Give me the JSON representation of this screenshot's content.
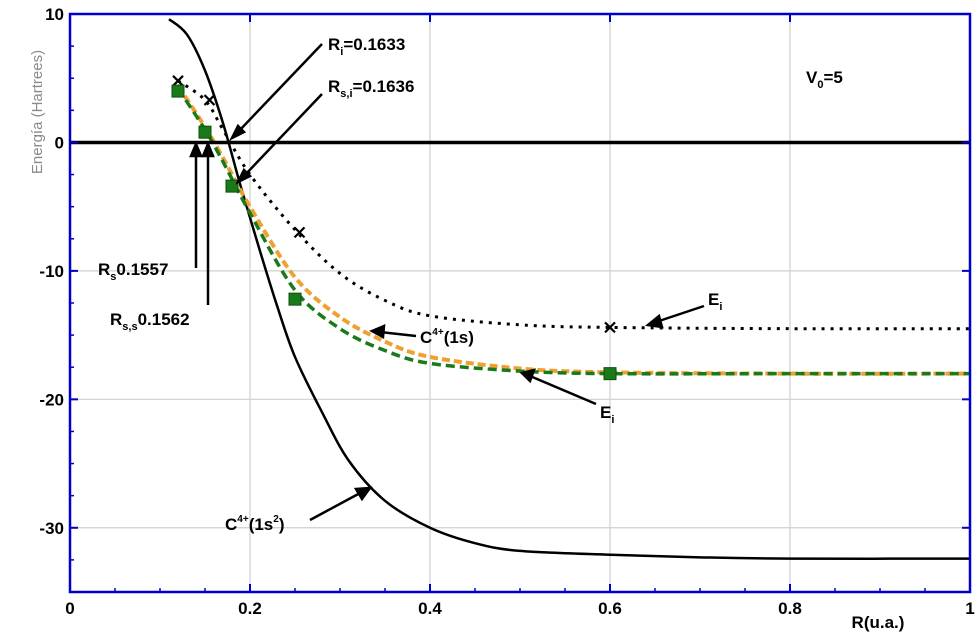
{
  "chart_data": {
    "type": "line",
    "title": "",
    "xlabel": "R(u.a.)",
    "ylabel": "Energía (Hartrees)",
    "xlim": [
      0,
      1
    ],
    "ylim": [
      -35,
      10
    ],
    "x_ticks": [
      "0",
      "0.2",
      "0.4",
      "0.6",
      "0.8",
      "1"
    ],
    "y_ticks": [
      "10",
      "0",
      "-10",
      "-20",
      "-30"
    ],
    "grid": true,
    "colors": {
      "axes": "#0000cc",
      "grid": "#cfcfcf",
      "orange": "#f0a030",
      "green": "#1a7a1a",
      "black": "#000000"
    },
    "series": [
      {
        "name": "C(1s2)",
        "style": "solid-black",
        "points": [
          [
            0.11,
            9.6
          ],
          [
            0.13,
            8.4
          ],
          [
            0.15,
            5.6
          ],
          [
            0.17,
            1.5
          ],
          [
            0.19,
            -3.5
          ],
          [
            0.21,
            -8.2
          ],
          [
            0.23,
            -12.7
          ],
          [
            0.25,
            -16.7
          ],
          [
            0.28,
            -21.0
          ],
          [
            0.31,
            -24.8
          ],
          [
            0.35,
            -27.9
          ],
          [
            0.4,
            -30.0
          ],
          [
            0.45,
            -31.2
          ],
          [
            0.5,
            -31.8
          ],
          [
            0.6,
            -32.1
          ],
          [
            0.7,
            -32.3
          ],
          [
            0.8,
            -32.4
          ],
          [
            1.0,
            -32.4
          ]
        ]
      },
      {
        "name": "Ei-x",
        "style": "dotted-black",
        "points": [
          [
            0.12,
            4.8
          ],
          [
            0.15,
            3.3
          ],
          [
            0.17,
            1.0
          ],
          [
            0.2,
            -2.5
          ],
          [
            0.25,
            -6.8
          ],
          [
            0.3,
            -10.2
          ],
          [
            0.35,
            -12.3
          ],
          [
            0.4,
            -13.5
          ],
          [
            0.5,
            -14.2
          ],
          [
            0.6,
            -14.4
          ],
          [
            0.8,
            -14.5
          ],
          [
            1.0,
            -14.5
          ]
        ]
      },
      {
        "name": "C(1s)",
        "style": "dashed-orange",
        "points": [
          [
            0.12,
            4.4
          ],
          [
            0.15,
            1.2
          ],
          [
            0.17,
            -1.2
          ],
          [
            0.2,
            -5.0
          ],
          [
            0.25,
            -10.5
          ],
          [
            0.3,
            -13.6
          ],
          [
            0.35,
            -15.5
          ],
          [
            0.4,
            -16.7
          ],
          [
            0.5,
            -17.6
          ],
          [
            0.6,
            -17.9
          ],
          [
            0.8,
            -18.0
          ],
          [
            1.0,
            -18.0
          ]
        ]
      },
      {
        "name": "Ei",
        "style": "dashed-green",
        "points": [
          [
            0.12,
            4.2
          ],
          [
            0.15,
            1.0
          ],
          [
            0.17,
            -1.5
          ],
          [
            0.2,
            -5.5
          ],
          [
            0.25,
            -11.5
          ],
          [
            0.3,
            -14.5
          ],
          [
            0.35,
            -16.2
          ],
          [
            0.4,
            -17.2
          ],
          [
            0.5,
            -17.8
          ],
          [
            0.6,
            -18.0
          ],
          [
            0.8,
            -18.0
          ],
          [
            1.0,
            -18.0
          ]
        ]
      }
    ],
    "markers": {
      "x_marks": [
        [
          0.12,
          4.8
        ],
        [
          0.155,
          3.3
        ],
        [
          0.255,
          -7.0
        ],
        [
          0.6,
          -14.4
        ]
      ],
      "green_squares": [
        [
          0.12,
          4.0
        ],
        [
          0.15,
          0.8
        ],
        [
          0.18,
          -3.4
        ],
        [
          0.25,
          -12.2
        ],
        [
          0.6,
          -18.0
        ]
      ]
    },
    "annotations": {
      "ri": {
        "main": "R",
        "sub": "i",
        "rest": "=0.1633"
      },
      "rsi": {
        "main": "R",
        "sub": "s,i",
        "rest": "=0.1636"
      },
      "rs": {
        "main": "R",
        "sub": "s",
        "rest": "0.1557"
      },
      "rss": {
        "main": "R",
        "sub": "s,s",
        "rest": "0.1562"
      },
      "v0": {
        "main": "V",
        "sub": "0",
        "rest": "=5"
      },
      "c1s": {
        "main": "C",
        "sup": "4+",
        "rest": "(1s)"
      },
      "c1s2": {
        "main": "C",
        "sup": "4+",
        "rest": "(1s",
        "sup2": "2",
        "rest2": ")"
      },
      "ei_upper": {
        "main": "E",
        "sub": "i"
      },
      "ei_lower": {
        "main": "E",
        "sub": "i"
      }
    }
  }
}
